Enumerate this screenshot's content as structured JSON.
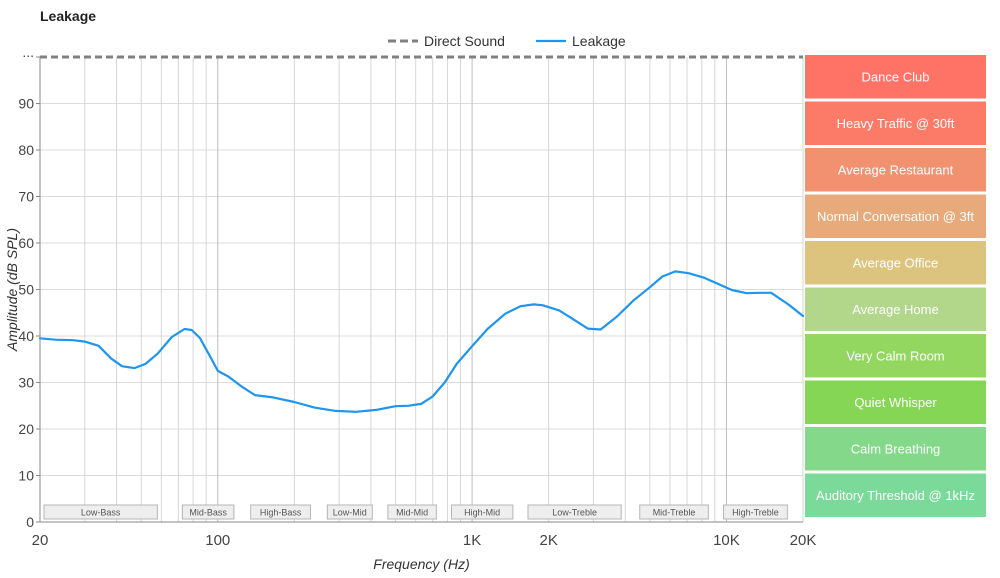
{
  "chart_data": {
    "type": "line",
    "title": "Leakage",
    "xlabel": "Frequency (Hz)",
    "ylabel": "Amplitude (dB SPL)",
    "x_scale": "log",
    "xlim": [
      20,
      20000
    ],
    "ylim": [
      0,
      100
    ],
    "x_tick_labels": [
      {
        "value": 20,
        "label": "20"
      },
      {
        "value": 100,
        "label": "100"
      },
      {
        "value": 1000,
        "label": "1K"
      },
      {
        "value": 2000,
        "label": "2K"
      },
      {
        "value": 10000,
        "label": "10K"
      },
      {
        "value": 20000,
        "label": "20K"
      }
    ],
    "y_tick_labels": [
      {
        "value": 0,
        "label": "0"
      },
      {
        "value": 10,
        "label": "10"
      },
      {
        "value": 20,
        "label": "20"
      },
      {
        "value": 30,
        "label": "30"
      },
      {
        "value": 40,
        "label": "40"
      },
      {
        "value": 50,
        "label": "50"
      },
      {
        "value": 60,
        "label": "60"
      },
      {
        "value": 70,
        "label": "70"
      },
      {
        "value": 80,
        "label": "80"
      },
      {
        "value": 90,
        "label": "90"
      },
      {
        "value": 100,
        "label": "..."
      }
    ],
    "grid": true,
    "legend_position": "top-center",
    "series": [
      {
        "name": "Direct Sound",
        "style": "dashed",
        "color": "#808080",
        "x": [
          20,
          20000
        ],
        "y": [
          100,
          100
        ]
      },
      {
        "name": "Leakage",
        "style": "solid",
        "color": "#1e96f0",
        "x": [
          20,
          23,
          27,
          30,
          34,
          38,
          42,
          47,
          52,
          58,
          66,
          74,
          79,
          85,
          92,
          100,
          110,
          125,
          140,
          165,
          200,
          240,
          290,
          350,
          420,
          500,
          560,
          630,
          700,
          780,
          870,
          1000,
          1150,
          1350,
          1550,
          1750,
          1900,
          2200,
          2500,
          2850,
          3200,
          3700,
          4300,
          5000,
          5600,
          6300,
          7100,
          8100,
          9200,
          10500,
          12000,
          13500,
          15000,
          17500,
          20000
        ],
        "y": [
          39.5,
          39.2,
          39.1,
          38.8,
          37.9,
          35.2,
          33.5,
          33.1,
          34.0,
          36.2,
          39.8,
          41.5,
          41.3,
          39.6,
          36.2,
          32.5,
          31.3,
          29.0,
          27.3,
          26.8,
          25.8,
          24.6,
          23.9,
          23.7,
          24.1,
          24.9,
          25.0,
          25.4,
          27.0,
          30.0,
          34.0,
          37.8,
          41.5,
          44.8,
          46.4,
          46.8,
          46.6,
          45.5,
          43.6,
          41.6,
          41.4,
          44.1,
          47.6,
          50.5,
          52.8,
          53.9,
          53.5,
          52.6,
          51.3,
          49.9,
          49.2,
          49.3,
          49.3,
          46.8,
          44.3
        ]
      }
    ],
    "band_labels": [
      "Low-Bass",
      "Mid-Bass",
      "High-Bass",
      "Low-Mid",
      "Mid-Mid",
      "High-Mid",
      "Low-Treble",
      "Mid-Treble",
      "High-Treble"
    ],
    "reference_levels": [
      {
        "label": "Dance Club",
        "color": "#ff7266"
      },
      {
        "label": "Heavy Traffic @ 30ft",
        "color": "#fc7b68"
      },
      {
        "label": "Average Restaurant",
        "color": "#f2916f"
      },
      {
        "label": "Normal Conversation @ 3ft",
        "color": "#e8aa7a"
      },
      {
        "label": "Average Office",
        "color": "#dcc47f"
      },
      {
        "label": "Average Home",
        "color": "#b2d78a"
      },
      {
        "label": "Very Calm Room",
        "color": "#93d660"
      },
      {
        "label": "Quiet Whisper",
        "color": "#86d655"
      },
      {
        "label": "Calm Breathing",
        "color": "#83d88a"
      },
      {
        "label": "Auditory Threshold @ 1kHz",
        "color": "#7bd99a"
      }
    ]
  }
}
